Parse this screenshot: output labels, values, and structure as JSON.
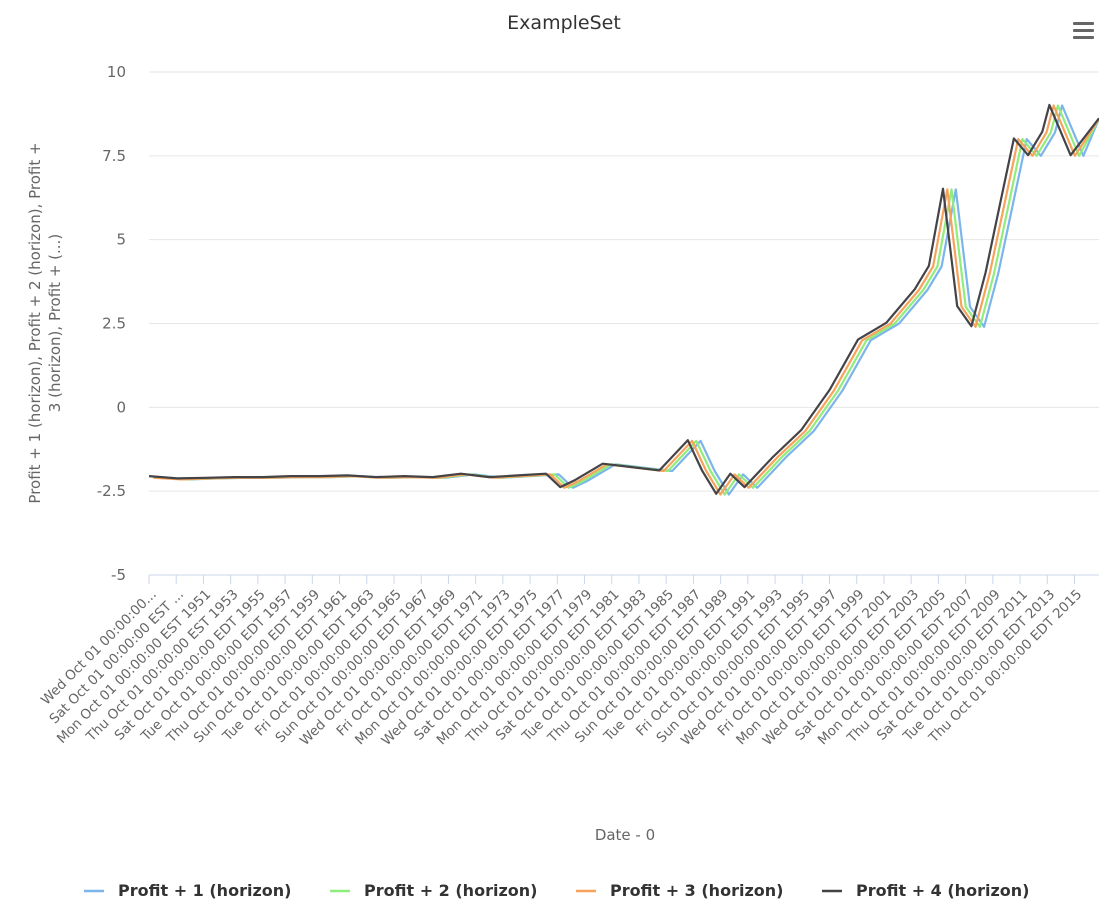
{
  "chart_data": {
    "type": "line",
    "title": "ExampleSet",
    "xlabel": "Date - 0",
    "ylabel_lines": [
      "Profit + 1 (horizon), Profit + 2 (horizon), Profit +",
      "3 (horizon), Profit + (...)"
    ],
    "ylim": [
      -5,
      10
    ],
    "yticks": [
      10,
      7.5,
      5,
      2.5,
      0,
      -2.5,
      -5
    ],
    "ytick_labels": [
      "10",
      "7.5",
      "5",
      "2.5",
      "0",
      "-2.5",
      "-5"
    ],
    "x_range": [
      "1949-10-01",
      "2016-10-01"
    ],
    "x_tick_labels": [
      "Wed Oct 01 00:00:00...",
      "Sat Oct 01 00:00:00 EST ...",
      "Mon Oct 01 00:00:00 EST 1951",
      "Thu Oct 01 00:00:00 EST 1953",
      "Sat Oct 01 00:00:00 EDT 1955",
      "Tue Oct 01 00:00:00 EDT 1957",
      "Thu Oct 01 00:00:00 EDT 1959",
      "Sun Oct 01 00:00:00 EDT 1961",
      "Tue Oct 01 00:00:00 EDT 1963",
      "Fri Oct 01 00:00:00 EDT 1965",
      "Sun Oct 01 00:00:00 EDT 1967",
      "Wed Oct 01 00:00:00 EDT 1969",
      "Fri Oct 01 00:00:00 EDT 1971",
      "Mon Oct 01 00:00:00 EDT 1973",
      "Wed Oct 01 00:00:00 EDT 1975",
      "Sat Oct 01 00:00:00 EDT 1977",
      "Mon Oct 01 00:00:00 EDT 1979",
      "Thu Oct 01 00:00:00 EDT 1981",
      "Sat Oct 01 00:00:00 EDT 1983",
      "Tue Oct 01 00:00:00 EDT 1985",
      "Thu Oct 01 00:00:00 EDT 1987",
      "Sun Oct 01 00:00:00 EDT 1989",
      "Tue Oct 01 00:00:00 EDT 1991",
      "Fri Oct 01 00:00:00 EDT 1993",
      "Sun Oct 01 00:00:00 EDT 1995",
      "Wed Oct 01 00:00:00 EDT 1997",
      "Fri Oct 01 00:00:00 EDT 1999",
      "Mon Oct 01 00:00:00 EDT 2001",
      "Wed Oct 01 00:00:00 EDT 2003",
      "Sat Oct 01 00:00:00 EDT 2005",
      "Mon Oct 01 00:00:00 EDT 2007",
      "Thu Oct 01 00:00:00 EDT 2009",
      "Sat Oct 01 00:00:00 EDT 2011",
      "Tue Oct 01 00:00:00 EDT 2013",
      "Thu Oct 01 00:00:00 EDT 2015"
    ],
    "grid": true,
    "legend_position": "bottom",
    "x": [
      "1949-10-01",
      "1951-10-01",
      "1953-10-01",
      "1955-10-01",
      "1957-10-01",
      "1959-10-01",
      "1961-10-01",
      "1963-10-01",
      "1965-10-01",
      "1967-10-01",
      "1969-10-01",
      "1971-10-01",
      "1973-10-01",
      "1975-10-01",
      "1977-10-01",
      "1978-10-01",
      "1979-10-01",
      "1981-10-01",
      "1983-10-01",
      "1985-10-01",
      "1987-10-01",
      "1988-10-01",
      "1989-10-01",
      "1990-10-01",
      "1991-10-01",
      "1993-10-01",
      "1995-10-01",
      "1997-10-01",
      "1999-10-01",
      "2001-10-01",
      "2003-10-01",
      "2004-10-01",
      "2005-10-01",
      "2006-10-01",
      "2007-10-01",
      "2008-10-01",
      "2009-10-01",
      "2010-10-01",
      "2011-10-01",
      "2012-10-01",
      "2013-04-01",
      "2014-10-01",
      "2016-10-01"
    ],
    "series": [
      {
        "name": "Profit + 1 (horizon)",
        "color": "#7cb5ec",
        "shift_years": 0.9,
        "values": [
          -2.1,
          -2.15,
          -2.12,
          -2.1,
          -2.1,
          -2.08,
          -2.08,
          -2.05,
          -2.1,
          -2.08,
          -2.1,
          -2.0,
          -2.1,
          -2.05,
          -2.0,
          -2.4,
          -2.2,
          -1.7,
          -1.8,
          -1.9,
          -1.0,
          -1.9,
          -2.6,
          -2.0,
          -2.4,
          -1.5,
          -0.7,
          0.5,
          2.0,
          2.5,
          3.5,
          4.2,
          6.5,
          3.0,
          2.4,
          4.0,
          6.0,
          8.0,
          7.5,
          8.2,
          9.0,
          7.5,
          8.6
        ]
      },
      {
        "name": "Profit + 2 (horizon)",
        "color": "#90ed7d",
        "shift_years": 0.6,
        "values": [
          -2.1,
          -2.15,
          -2.12,
          -2.1,
          -2.1,
          -2.08,
          -2.08,
          -2.05,
          -2.1,
          -2.08,
          -2.1,
          -2.0,
          -2.1,
          -2.05,
          -2.0,
          -2.4,
          -2.2,
          -1.7,
          -1.8,
          -1.9,
          -1.0,
          -1.9,
          -2.6,
          -2.0,
          -2.4,
          -1.5,
          -0.7,
          0.5,
          2.0,
          2.5,
          3.5,
          4.2,
          6.5,
          3.0,
          2.4,
          4.0,
          6.0,
          8.0,
          7.5,
          8.2,
          9.0,
          7.5,
          8.6
        ]
      },
      {
        "name": "Profit + 3 (horizon)",
        "color": "#f7a35c",
        "shift_years": 0.3,
        "values": [
          -2.1,
          -2.15,
          -2.12,
          -2.1,
          -2.1,
          -2.08,
          -2.08,
          -2.05,
          -2.1,
          -2.08,
          -2.1,
          -2.0,
          -2.1,
          -2.05,
          -2.0,
          -2.4,
          -2.2,
          -1.7,
          -1.8,
          -1.9,
          -1.0,
          -1.9,
          -2.6,
          -2.0,
          -2.4,
          -1.5,
          -0.7,
          0.5,
          2.0,
          2.5,
          3.5,
          4.2,
          6.5,
          3.0,
          2.4,
          4.0,
          6.0,
          8.0,
          7.5,
          8.2,
          9.0,
          7.5,
          8.6
        ]
      },
      {
        "name": "Profit + 4 (horizon)",
        "color": "#434348",
        "shift_years": 0.0,
        "values": [
          -2.05,
          -2.12,
          -2.1,
          -2.08,
          -2.08,
          -2.05,
          -2.05,
          -2.03,
          -2.08,
          -2.05,
          -2.08,
          -1.98,
          -2.08,
          -2.03,
          -1.98,
          -2.38,
          -2.18,
          -1.68,
          -1.78,
          -1.88,
          -0.98,
          -1.88,
          -2.58,
          -1.98,
          -2.38,
          -1.48,
          -0.68,
          0.52,
          2.02,
          2.52,
          3.52,
          4.22,
          6.52,
          3.02,
          2.42,
          4.02,
          6.02,
          8.02,
          7.52,
          8.22,
          9.02,
          7.52,
          8.62
        ]
      }
    ]
  },
  "menu_icon": "hamburger-menu-icon"
}
